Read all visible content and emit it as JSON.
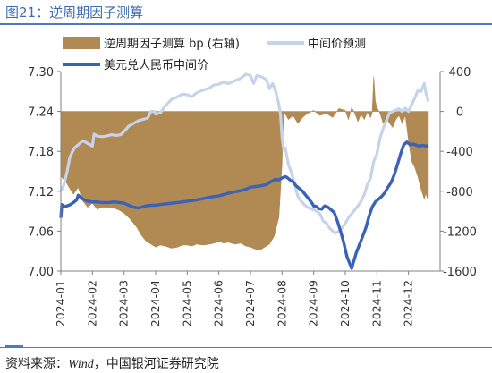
{
  "figure": {
    "title": "图21：逆周期因子测算",
    "source_lead": "资料来源：",
    "source_wind": "Wind",
    "source_rest": "，中国银河证券研究院"
  },
  "chart_data": {
    "type": "line",
    "x_labels": [
      "2024-01",
      "2024-02",
      "2024-03",
      "2024-04",
      "2024-05",
      "2024-06",
      "2024-07",
      "2024-08",
      "2024-09",
      "2024-10",
      "2024-11",
      "2024-12"
    ],
    "y_left": {
      "min": 7.0,
      "max": 7.3,
      "ticks": [
        "7.30",
        "7.24",
        "7.18",
        "7.12",
        "7.06",
        "7.00"
      ]
    },
    "y_right": {
      "min": -1600,
      "max": 400,
      "ticks": [
        "400",
        "0",
        "-400",
        "-800",
        "-1200",
        "-1600"
      ]
    },
    "legend": {
      "factor": "逆周期因子测算 bp (右轴)",
      "forecast": "中间价预测",
      "central": "美元兑人民币中间价"
    },
    "colors": {
      "factor": "#b08a52",
      "forecast": "#c5d4ea",
      "central": "#3a62b8"
    },
    "series": [
      {
        "name": "逆周期因子测算 bp (右轴)",
        "axis": "right",
        "type": "area",
        "points": [
          [
            0.0,
            -650
          ],
          [
            0.15,
            -700
          ],
          [
            0.3,
            -780
          ],
          [
            0.4,
            -830
          ],
          [
            0.55,
            -760
          ],
          [
            0.7,
            -900
          ],
          [
            0.85,
            -960
          ],
          [
            1.0,
            -920
          ],
          [
            1.15,
            -980
          ],
          [
            1.3,
            -960
          ],
          [
            1.5,
            -960
          ],
          [
            1.7,
            -970
          ],
          [
            1.85,
            -990
          ],
          [
            2.0,
            -1020
          ],
          [
            2.2,
            -1080
          ],
          [
            2.4,
            -1160
          ],
          [
            2.55,
            -1240
          ],
          [
            2.7,
            -1300
          ],
          [
            2.85,
            -1330
          ],
          [
            3.0,
            -1360
          ],
          [
            3.15,
            -1340
          ],
          [
            3.3,
            -1350
          ],
          [
            3.5,
            -1370
          ],
          [
            3.7,
            -1360
          ],
          [
            3.85,
            -1340
          ],
          [
            4.0,
            -1340
          ],
          [
            4.15,
            -1350
          ],
          [
            4.3,
            -1330
          ],
          [
            4.5,
            -1340
          ],
          [
            4.7,
            -1330
          ],
          [
            4.85,
            -1320
          ],
          [
            5.0,
            -1300
          ],
          [
            5.15,
            -1320
          ],
          [
            5.3,
            -1310
          ],
          [
            5.5,
            -1330
          ],
          [
            5.7,
            -1320
          ],
          [
            5.85,
            -1350
          ],
          [
            6.0,
            -1360
          ],
          [
            6.15,
            -1380
          ],
          [
            6.3,
            -1390
          ],
          [
            6.45,
            -1360
          ],
          [
            6.6,
            -1330
          ],
          [
            6.75,
            -1250
          ],
          [
            6.9,
            -1060
          ],
          [
            7.0,
            -520
          ],
          [
            7.05,
            0
          ],
          [
            7.2,
            -80
          ],
          [
            7.35,
            -40
          ],
          [
            7.5,
            -120
          ],
          [
            7.65,
            -60
          ],
          [
            7.8,
            -20
          ],
          [
            8.0,
            10
          ],
          [
            8.2,
            -40
          ],
          [
            8.4,
            -20
          ],
          [
            8.6,
            -60
          ],
          [
            8.8,
            30
          ],
          [
            9.0,
            10
          ],
          [
            9.1,
            -80
          ],
          [
            9.2,
            40
          ],
          [
            9.3,
            -20
          ],
          [
            9.4,
            -100
          ],
          [
            9.5,
            -30
          ],
          [
            9.6,
            -80
          ],
          [
            9.7,
            -10
          ],
          [
            9.8,
            -60
          ],
          [
            9.85,
            -20
          ],
          [
            9.9,
            350
          ],
          [
            9.95,
            100
          ],
          [
            10.0,
            40
          ],
          [
            10.1,
            -20
          ],
          [
            10.2,
            -120
          ],
          [
            10.3,
            -60
          ],
          [
            10.4,
            -120
          ],
          [
            10.5,
            -160
          ],
          [
            10.6,
            -80
          ],
          [
            10.7,
            -40
          ],
          [
            10.8,
            -120
          ],
          [
            10.9,
            -40
          ],
          [
            11.0,
            -290
          ],
          [
            11.1,
            -500
          ],
          [
            11.2,
            -560
          ],
          [
            11.3,
            -660
          ],
          [
            11.4,
            -780
          ],
          [
            11.5,
            -880
          ],
          [
            11.55,
            -820
          ],
          [
            11.6,
            -880
          ],
          [
            11.63,
            -860
          ]
        ]
      },
      {
        "name": "中间价预测",
        "axis": "left",
        "type": "line",
        "points": [
          [
            0.0,
            7.12
          ],
          [
            0.1,
            7.13
          ],
          [
            0.2,
            7.15
          ],
          [
            0.28,
            7.17
          ],
          [
            0.35,
            7.178
          ],
          [
            0.45,
            7.186
          ],
          [
            0.55,
            7.19
          ],
          [
            0.7,
            7.196
          ],
          [
            0.85,
            7.192
          ],
          [
            1.0,
            7.188
          ],
          [
            1.05,
            7.206
          ],
          [
            1.15,
            7.203
          ],
          [
            1.3,
            7.202
          ],
          [
            1.45,
            7.203
          ],
          [
            1.6,
            7.205
          ],
          [
            1.75,
            7.204
          ],
          [
            1.9,
            7.205
          ],
          [
            2.0,
            7.21
          ],
          [
            2.15,
            7.218
          ],
          [
            2.3,
            7.222
          ],
          [
            2.45,
            7.226
          ],
          [
            2.6,
            7.228
          ],
          [
            2.75,
            7.23
          ],
          [
            2.85,
            7.24
          ],
          [
            2.95,
            7.24
          ],
          [
            3.0,
            7.236
          ],
          [
            3.15,
            7.238
          ],
          [
            3.3,
            7.248
          ],
          [
            3.5,
            7.258
          ],
          [
            3.7,
            7.262
          ],
          [
            3.85,
            7.266
          ],
          [
            4.0,
            7.265
          ],
          [
            4.15,
            7.262
          ],
          [
            4.3,
            7.268
          ],
          [
            4.5,
            7.272
          ],
          [
            4.7,
            7.275
          ],
          [
            4.85,
            7.28
          ],
          [
            5.0,
            7.281
          ],
          [
            5.15,
            7.284
          ],
          [
            5.3,
            7.282
          ],
          [
            5.5,
            7.286
          ],
          [
            5.7,
            7.29
          ],
          [
            5.85,
            7.296
          ],
          [
            6.0,
            7.294
          ],
          [
            6.1,
            7.282
          ],
          [
            6.2,
            7.294
          ],
          [
            6.35,
            7.292
          ],
          [
            6.5,
            7.288
          ],
          [
            6.6,
            7.274
          ],
          [
            6.7,
            7.282
          ],
          [
            6.8,
            7.27
          ],
          [
            6.9,
            7.25
          ],
          [
            6.95,
            7.235
          ],
          [
            7.0,
            7.2
          ],
          [
            7.05,
            7.183
          ],
          [
            7.1,
            7.185
          ],
          [
            7.2,
            7.16
          ],
          [
            7.3,
            7.148
          ],
          [
            7.4,
            7.13
          ],
          [
            7.5,
            7.112
          ],
          [
            7.6,
            7.105
          ],
          [
            7.7,
            7.1
          ],
          [
            7.8,
            7.096
          ],
          [
            7.9,
            7.094
          ],
          [
            8.0,
            7.092
          ],
          [
            8.1,
            7.09
          ],
          [
            8.2,
            7.086
          ],
          [
            8.3,
            7.075
          ],
          [
            8.4,
            7.072
          ],
          [
            8.5,
            7.065
          ],
          [
            8.6,
            7.06
          ],
          [
            8.7,
            7.057
          ],
          [
            8.8,
            7.06
          ],
          [
            8.9,
            7.065
          ],
          [
            9.0,
            7.072
          ],
          [
            9.1,
            7.08
          ],
          [
            9.2,
            7.086
          ],
          [
            9.3,
            7.092
          ],
          [
            9.4,
            7.098
          ],
          [
            9.5,
            7.105
          ],
          [
            9.6,
            7.115
          ],
          [
            9.7,
            7.13
          ],
          [
            9.8,
            7.14
          ],
          [
            9.9,
            7.165
          ],
          [
            10.0,
            7.176
          ],
          [
            10.1,
            7.2
          ],
          [
            10.2,
            7.215
          ],
          [
            10.3,
            7.226
          ],
          [
            10.4,
            7.238
          ],
          [
            10.5,
            7.24
          ],
          [
            10.6,
            7.242
          ],
          [
            10.7,
            7.244
          ],
          [
            10.8,
            7.24
          ],
          [
            10.9,
            7.245
          ],
          [
            11.0,
            7.24
          ],
          [
            11.1,
            7.25
          ],
          [
            11.2,
            7.26
          ],
          [
            11.3,
            7.272
          ],
          [
            11.4,
            7.27
          ],
          [
            11.5,
            7.282
          ],
          [
            11.55,
            7.268
          ],
          [
            11.63,
            7.255
          ]
        ]
      },
      {
        "name": "美元兑人民币中间价",
        "axis": "left",
        "type": "line",
        "points": [
          [
            0.0,
            7.08
          ],
          [
            0.03,
            7.1
          ],
          [
            0.1,
            7.097
          ],
          [
            0.2,
            7.098
          ],
          [
            0.3,
            7.1
          ],
          [
            0.4,
            7.103
          ],
          [
            0.5,
            7.107
          ],
          [
            0.55,
            7.114
          ],
          [
            0.6,
            7.112
          ],
          [
            0.7,
            7.108
          ],
          [
            0.85,
            7.105
          ],
          [
            1.0,
            7.104
          ],
          [
            1.15,
            7.104
          ],
          [
            1.3,
            7.103
          ],
          [
            1.5,
            7.103
          ],
          [
            1.7,
            7.104
          ],
          [
            1.85,
            7.103
          ],
          [
            2.0,
            7.102
          ],
          [
            2.15,
            7.099
          ],
          [
            2.3,
            7.096
          ],
          [
            2.45,
            7.095
          ],
          [
            2.55,
            7.096
          ],
          [
            2.7,
            7.098
          ],
          [
            2.85,
            7.099
          ],
          [
            3.0,
            7.099
          ],
          [
            3.15,
            7.1
          ],
          [
            3.3,
            7.101
          ],
          [
            3.5,
            7.102
          ],
          [
            3.7,
            7.103
          ],
          [
            3.85,
            7.104
          ],
          [
            4.0,
            7.105
          ],
          [
            4.15,
            7.106
          ],
          [
            4.3,
            7.107
          ],
          [
            4.5,
            7.109
          ],
          [
            4.7,
            7.111
          ],
          [
            4.85,
            7.112
          ],
          [
            5.0,
            7.113
          ],
          [
            5.15,
            7.115
          ],
          [
            5.3,
            7.117
          ],
          [
            5.5,
            7.119
          ],
          [
            5.7,
            7.121
          ],
          [
            5.85,
            7.123
          ],
          [
            6.0,
            7.126
          ],
          [
            6.15,
            7.127
          ],
          [
            6.3,
            7.128
          ],
          [
            6.5,
            7.13
          ],
          [
            6.6,
            7.133
          ],
          [
            6.7,
            7.136
          ],
          [
            6.8,
            7.138
          ],
          [
            6.9,
            7.137
          ],
          [
            7.0,
            7.14
          ],
          [
            7.1,
            7.142
          ],
          [
            7.15,
            7.141
          ],
          [
            7.25,
            7.137
          ],
          [
            7.35,
            7.134
          ],
          [
            7.45,
            7.128
          ],
          [
            7.55,
            7.124
          ],
          [
            7.65,
            7.12
          ],
          [
            7.75,
            7.114
          ],
          [
            7.85,
            7.108
          ],
          [
            7.95,
            7.102
          ],
          [
            8.0,
            7.098
          ],
          [
            8.1,
            7.097
          ],
          [
            8.15,
            7.094
          ],
          [
            8.25,
            7.093
          ],
          [
            8.35,
            7.098
          ],
          [
            8.45,
            7.096
          ],
          [
            8.55,
            7.092
          ],
          [
            8.65,
            7.088
          ],
          [
            8.75,
            7.075
          ],
          [
            8.85,
            7.06
          ],
          [
            8.95,
            7.043
          ],
          [
            9.05,
            7.022
          ],
          [
            9.15,
            7.01
          ],
          [
            9.2,
            7.004
          ],
          [
            9.25,
            7.012
          ],
          [
            9.35,
            7.028
          ],
          [
            9.45,
            7.04
          ],
          [
            9.55,
            7.052
          ],
          [
            9.65,
            7.065
          ],
          [
            9.75,
            7.082
          ],
          [
            9.85,
            7.096
          ],
          [
            9.95,
            7.104
          ],
          [
            10.05,
            7.108
          ],
          [
            10.15,
            7.112
          ],
          [
            10.25,
            7.118
          ],
          [
            10.35,
            7.126
          ],
          [
            10.45,
            7.133
          ],
          [
            10.55,
            7.145
          ],
          [
            10.65,
            7.16
          ],
          [
            10.75,
            7.176
          ],
          [
            10.85,
            7.19
          ],
          [
            10.95,
            7.194
          ],
          [
            11.0,
            7.192
          ],
          [
            11.05,
            7.19
          ],
          [
            11.15,
            7.191
          ],
          [
            11.25,
            7.189
          ],
          [
            11.35,
            7.188
          ],
          [
            11.45,
            7.189
          ],
          [
            11.55,
            7.188
          ],
          [
            11.63,
            7.189
          ]
        ]
      }
    ]
  }
}
